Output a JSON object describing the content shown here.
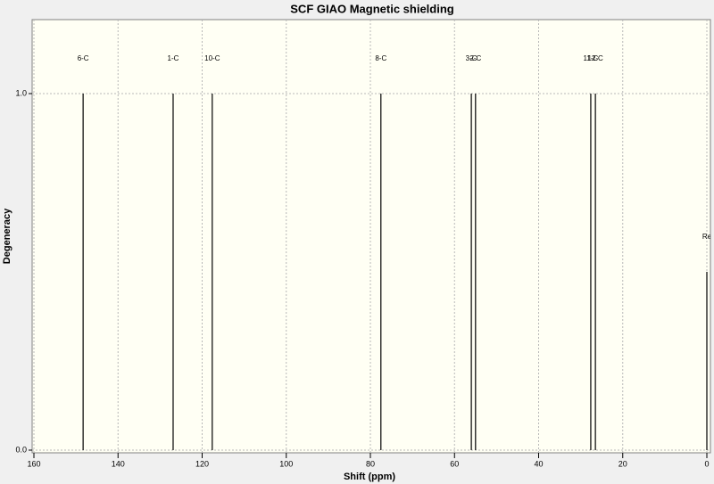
{
  "chart_data": {
    "type": "stem",
    "title": "SCF GIAO Magnetic shielding",
    "xlabel": "Shift (ppm)",
    "ylabel": "Degeneracy",
    "x": [
      148.3,
      126.9,
      117.6,
      77.5,
      56.0,
      55.0,
      27.6,
      26.5,
      0
    ],
    "values": [
      1,
      1,
      1,
      1,
      1,
      1,
      1,
      1,
      0.5
    ],
    "peak_labels": [
      "6-C",
      "1-C",
      "10-C",
      "8-C",
      "3-C",
      "2-C",
      "11-C",
      "12-C",
      "Re"
    ],
    "color": "#000000",
    "xlim": [
      160,
      0
    ],
    "ylim": [
      0,
      1.2
    ],
    "xticks": [
      160,
      140,
      120,
      100,
      80,
      60,
      40,
      20,
      0
    ],
    "yticks": [
      {
        "value": 0,
        "label": "0.0"
      },
      {
        "value": 1,
        "label": "1.0"
      }
    ],
    "grid": true
  }
}
